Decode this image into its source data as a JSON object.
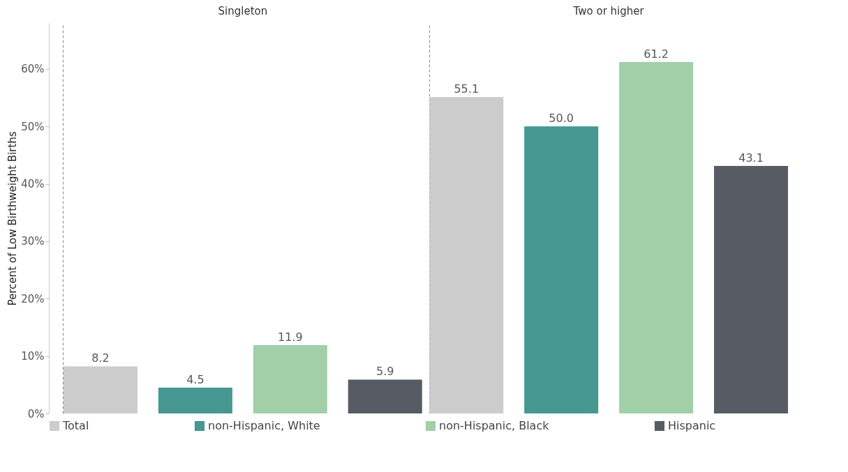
{
  "chart_data": {
    "type": "bar",
    "ylabel": "Percent of Low Birthweight Births",
    "categories": [
      "Singleton",
      "Two or higher"
    ],
    "series": [
      {
        "name": "Total",
        "color": "#cccccc",
        "values": [
          8.2,
          55.1
        ],
        "value_labels": [
          "8.2",
          "55.1"
        ]
      },
      {
        "name": "non-Hispanic, White",
        "color": "#469791",
        "values": [
          4.5,
          50.0
        ],
        "value_labels": [
          "4.5",
          "50.0"
        ]
      },
      {
        "name": "non-Hispanic, Black",
        "color": "#a0cfa8",
        "values": [
          11.9,
          61.2
        ],
        "value_labels": [
          "11.9",
          "61.2"
        ]
      },
      {
        "name": "Hispanic",
        "color": "#575c64",
        "values": [
          5.9,
          43.1
        ],
        "value_labels": [
          "5.9",
          "43.1"
        ]
      }
    ],
    "ylim": [
      0,
      68
    ],
    "yticks": [
      {
        "value": 0,
        "label": "0%"
      },
      {
        "value": 10,
        "label": "10%"
      },
      {
        "value": 20,
        "label": "20%"
      },
      {
        "value": 30,
        "label": "30%"
      },
      {
        "value": 40,
        "label": "40%"
      },
      {
        "value": 50,
        "label": "50%"
      },
      {
        "value": 60,
        "label": "60%"
      }
    ],
    "grid": false,
    "legend": "bottom"
  }
}
